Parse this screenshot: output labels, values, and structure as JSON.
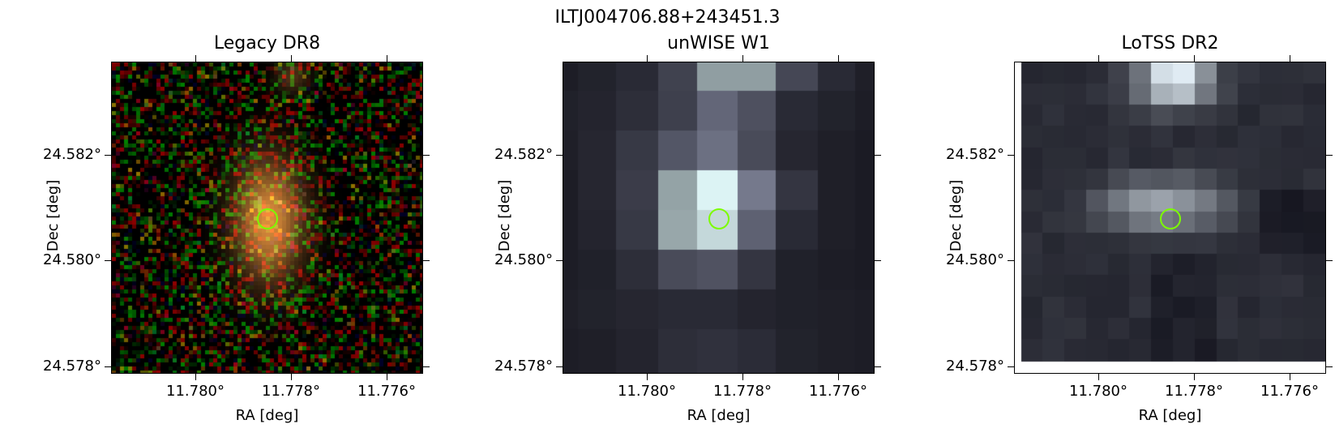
{
  "figure": {
    "title": "ILTJ004706.88+243451.3"
  },
  "panels": [
    {
      "title": "Legacy DR8",
      "xlabel": "RA [deg]",
      "ylabel": "Dec [deg]",
      "xticks": [
        "11.780°",
        "11.778°",
        "11.776°"
      ],
      "yticks": [
        "24.582°",
        "24.580°",
        "24.578°"
      ]
    },
    {
      "title": "unWISE W1",
      "xlabel": "RA [deg]",
      "ylabel": "Dec [deg]",
      "xticks": [
        "11.780°",
        "11.778°",
        "11.776°"
      ],
      "yticks": [
        "24.582°",
        "24.580°",
        "24.578°"
      ]
    },
    {
      "title": "LoTSS DR2",
      "xlabel": "RA [deg]",
      "ylabel": "Dec [deg]",
      "xticks": [
        "11.780°",
        "11.778°",
        "11.776°"
      ],
      "yticks": [
        "24.582°",
        "24.580°",
        "24.578°"
      ]
    }
  ],
  "colors": {
    "marker": "#7cfc00",
    "source_glow": "#d88a3a"
  }
}
